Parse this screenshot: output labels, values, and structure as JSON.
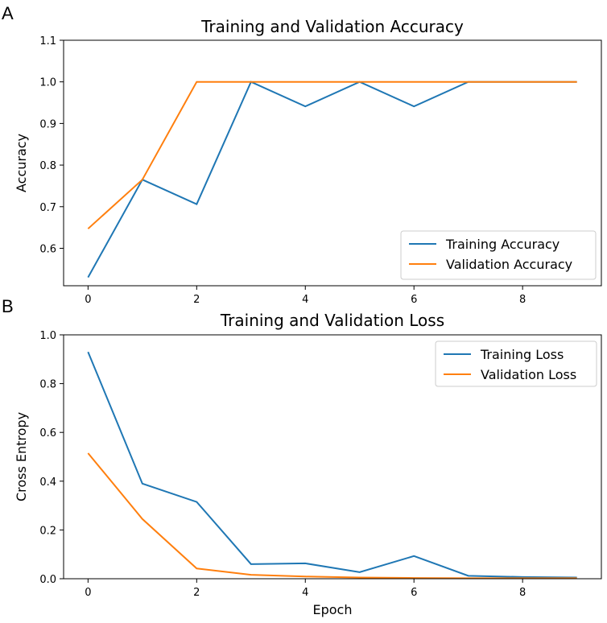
{
  "panel_labels": [
    "A",
    "B"
  ],
  "colors": {
    "training": "#1f77b4",
    "validation": "#ff7f0e",
    "axis": "#000000"
  },
  "chart_data": [
    {
      "type": "line",
      "title": "Training and Validation Accuracy",
      "xlabel": "",
      "ylabel": "Accuracy",
      "xlim": [
        -0.45,
        9.45
      ],
      "ylim": [
        0.51,
        1.1
      ],
      "xticks": [
        0,
        2,
        4,
        6,
        8
      ],
      "yticks": [
        0.6,
        0.7,
        0.8,
        0.9,
        1.0,
        1.1
      ],
      "ytick_labels": [
        "0.6",
        "0.7",
        "0.8",
        "0.9",
        "1.0",
        "1.1"
      ],
      "legend_position": "lower-right",
      "x": [
        0,
        1,
        2,
        3,
        4,
        5,
        6,
        7,
        8,
        9
      ],
      "series": [
        {
          "name": "Training Accuracy",
          "color": "#1f77b4",
          "values": [
            0.53,
            0.765,
            0.706,
            1.0,
            0.941,
            1.0,
            0.941,
            1.0,
            1.0,
            1.0
          ]
        },
        {
          "name": "Validation Accuracy",
          "color": "#ff7f0e",
          "values": [
            0.647,
            0.765,
            1.0,
            1.0,
            1.0,
            1.0,
            1.0,
            1.0,
            1.0,
            1.0
          ]
        }
      ]
    },
    {
      "type": "line",
      "title": "Training and Validation Loss",
      "xlabel": "Epoch",
      "ylabel": "Cross Entropy",
      "xlim": [
        -0.45,
        9.45
      ],
      "ylim": [
        0.0,
        1.0
      ],
      "xticks": [
        0,
        2,
        4,
        6,
        8
      ],
      "yticks": [
        0.0,
        0.2,
        0.4,
        0.6,
        0.8,
        1.0
      ],
      "ytick_labels": [
        "0.0",
        "0.2",
        "0.4",
        "0.6",
        "0.8",
        "1.0"
      ],
      "legend_position": "upper-right",
      "x": [
        0,
        1,
        2,
        3,
        4,
        5,
        6,
        7,
        8,
        9
      ],
      "series": [
        {
          "name": "Training Loss",
          "color": "#1f77b4",
          "values": [
            0.93,
            0.39,
            0.315,
            0.06,
            0.063,
            0.027,
            0.093,
            0.012,
            0.007,
            0.005
          ]
        },
        {
          "name": "Validation Loss",
          "color": "#ff7f0e",
          "values": [
            0.515,
            0.245,
            0.042,
            0.016,
            0.009,
            0.005,
            0.003,
            0.002,
            0.002,
            0.002
          ]
        }
      ]
    }
  ]
}
